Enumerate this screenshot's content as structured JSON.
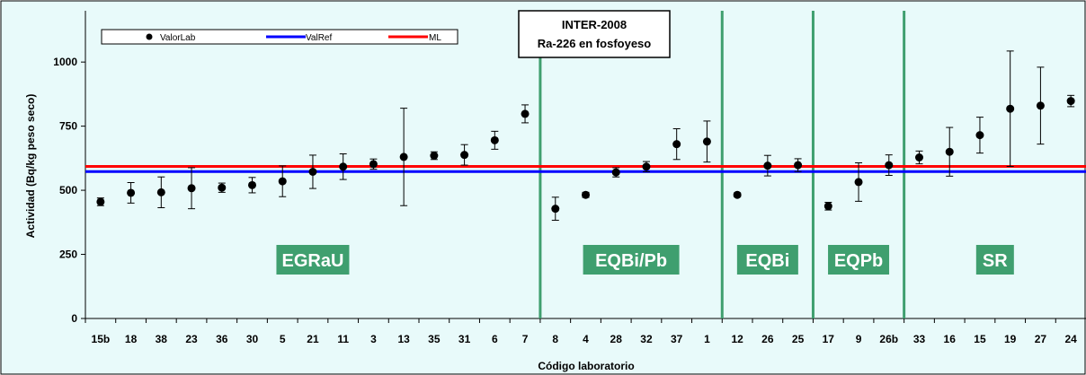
{
  "chart_data": {
    "type": "scatter",
    "title_lines": [
      "INTER-2008",
      "Ra-226 en fosfoyeso"
    ],
    "xlabel": "Código laboratorio",
    "ylabel": "Actividad (Bq/kg peso seco)",
    "ylim": [
      0,
      1200
    ],
    "yticks": [
      0,
      250,
      500,
      750,
      1000
    ],
    "categories": [
      "15b",
      "18",
      "38",
      "23",
      "36",
      "30",
      "5",
      "21",
      "11",
      "3",
      "13",
      "35",
      "31",
      "6",
      "7",
      "8",
      "4",
      "28",
      "32",
      "37",
      "1",
      "12",
      "26",
      "25",
      "17",
      "9",
      "26b",
      "33",
      "16",
      "15",
      "19",
      "27",
      "24"
    ],
    "series": [
      {
        "name": "ValorLab",
        "values": [
          455,
          490,
          492,
          508,
          510,
          520,
          535,
          572,
          592,
          602,
          630,
          635,
          638,
          695,
          798,
          428,
          482,
          570,
          592,
          680,
          690,
          482,
          596,
          598,
          438,
          532,
          598,
          628,
          650,
          715,
          818,
          830,
          848
        ],
        "err_low": [
          15,
          40,
          60,
          80,
          18,
          30,
          60,
          65,
          50,
          20,
          190,
          15,
          40,
          35,
          35,
          45,
          10,
          18,
          20,
          60,
          80,
          8,
          40,
          25,
          15,
          75,
          40,
          25,
          95,
          70,
          225,
          150,
          22
        ],
        "err_high": [
          15,
          40,
          60,
          80,
          18,
          30,
          60,
          65,
          50,
          20,
          190,
          15,
          40,
          35,
          35,
          45,
          10,
          18,
          20,
          60,
          80,
          8,
          40,
          25,
          15,
          75,
          40,
          25,
          95,
          70,
          225,
          150,
          22
        ]
      },
      {
        "name": "ValRef",
        "value": 573
      },
      {
        "name": "ML",
        "value": 593
      }
    ],
    "groups": [
      {
        "label": "EGRaU",
        "start": 0,
        "end": 14
      },
      {
        "label": "EQBi/Pb",
        "start": 15,
        "end": 20
      },
      {
        "label": "EQBi",
        "start": 21,
        "end": 23
      },
      {
        "label": "EQPb",
        "start": 24,
        "end": 26
      },
      {
        "label": "SR",
        "start": 27,
        "end": 32
      }
    ],
    "legend": [
      "ValorLab",
      "ValRef",
      "ML"
    ],
    "legend_position": "top-left",
    "grid": false
  },
  "colors": {
    "plot_bg": "#e8fafa",
    "point": "#000000",
    "valref": "#0000ff",
    "ml": "#ff0000",
    "divider": "#3f9f6f",
    "group_box": "#3f9f6f"
  }
}
